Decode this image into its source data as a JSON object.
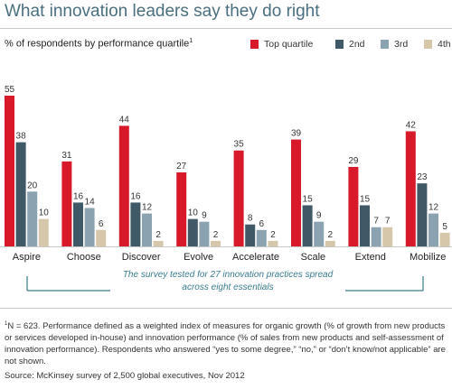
{
  "title": "What innovation leaders say they do right",
  "subtitle": "% of respondents by performance quartile",
  "subtitle_sup": "1",
  "note": "The survey tested for 27 innovation practices spread across eight essentials",
  "footnote_sup": "1",
  "footnote": "N = 623. Performance defined as a weighted index of measures for organic growth (% of growth from new products or services developed in-house) and innovation performance (% of sales from new products and self-assessment of innovation performance). Respondents who answered “yes to some degree,” “no,” or “don’t know/not applicable” are not shown.",
  "source": "Source: McKinsey survey of 2,500 global executives, Nov 2012",
  "colors": {
    "top": "#d7192a",
    "second": "#3f5a66",
    "third": "#8ba2b0",
    "fourth": "#d6c7aa",
    "note_bracket": "#3a7c8e"
  },
  "chart_data": {
    "type": "bar",
    "categories": [
      "Aspire",
      "Choose",
      "Discover",
      "Evolve",
      "Accelerate",
      "Scale",
      "Extend",
      "Mobilize"
    ],
    "series": [
      {
        "name": "Top quartile",
        "values": [
          55,
          31,
          44,
          27,
          35,
          39,
          29,
          42
        ]
      },
      {
        "name": "2nd",
        "values": [
          38,
          16,
          16,
          10,
          8,
          15,
          15,
          23
        ]
      },
      {
        "name": "3rd",
        "values": [
          20,
          14,
          12,
          9,
          6,
          9,
          7,
          12
        ]
      },
      {
        "name": "4th",
        "values": [
          10,
          6,
          2,
          2,
          2,
          2,
          7,
          5
        ]
      }
    ],
    "ylim": [
      0,
      55
    ],
    "grid": false,
    "legend_position": "top-right"
  }
}
